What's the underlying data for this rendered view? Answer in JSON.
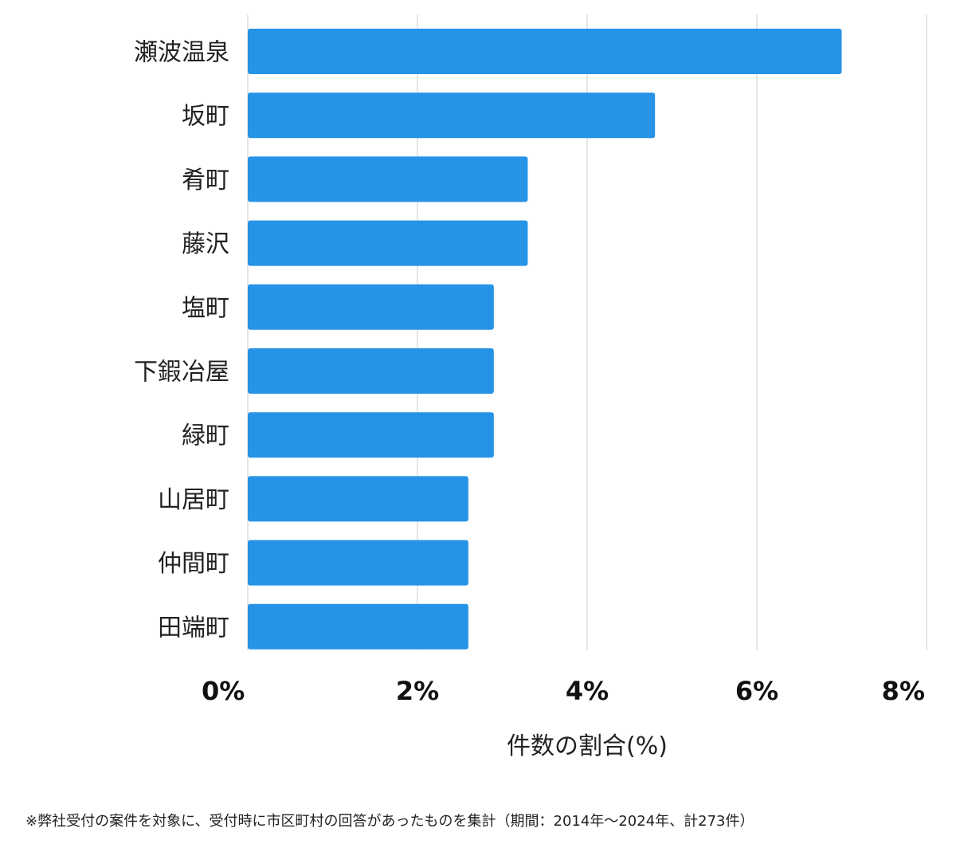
{
  "chart_data": {
    "type": "bar",
    "orientation": "horizontal",
    "categories": [
      "瀬波温泉",
      "坂町",
      "肴町",
      "藤沢",
      "塩町",
      "下鍜冶屋",
      "緑町",
      "山居町",
      "仲間町",
      "田端町"
    ],
    "values": [
      7.0,
      4.8,
      3.3,
      3.3,
      2.9,
      2.9,
      2.9,
      2.6,
      2.6,
      2.6
    ],
    "xticks": [
      "0%",
      "2%",
      "4%",
      "6%",
      "8%"
    ],
    "xlim": [
      0,
      8
    ],
    "xlabel": "件数の割合(%)",
    "grid": true,
    "bar_color": "#2693E6",
    "grid_color": "#DDDDDD"
  },
  "footnote": "※弊社受付の案件を対象に、受付時に市区町村の回答があったものを集計（期間：2014年〜2024年、計273件）"
}
